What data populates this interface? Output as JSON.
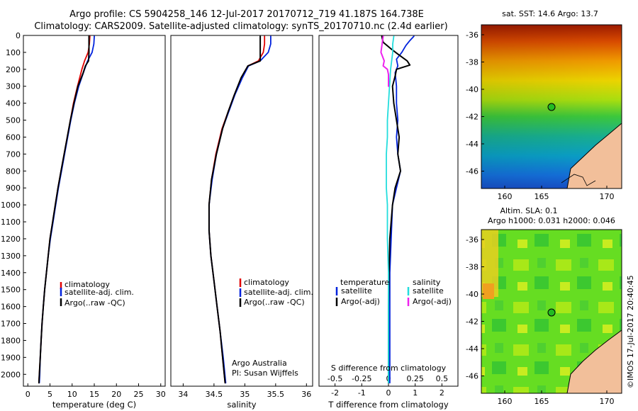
{
  "header": {
    "title_line1": "Argo profile: CS 5904258_146 12-Jul-2017 20170712_719 41.187S 164.738E",
    "title_line2": "Climatology: CARS2009. Satellite-adjusted climatology: synTS_20170710.nc (2.4d earlier)"
  },
  "colors": {
    "climatology": "#e00000",
    "satellite": "#0022dd",
    "argo": "#000000",
    "salinity_sat": "#22dddd",
    "salinity_argo": "#ee22ee",
    "land": "#f2bf9a"
  },
  "chart_data": [
    {
      "id": "temperature",
      "type": "line",
      "xlabel": "temperature (deg C)",
      "ylabel": "",
      "xlim": [
        -1,
        31
      ],
      "ylim": [
        2070,
        0
      ],
      "xticks": [
        0,
        5,
        10,
        15,
        20,
        25,
        30
      ],
      "yticks": [
        0,
        100,
        200,
        300,
        400,
        500,
        600,
        700,
        800,
        900,
        1000,
        1100,
        1200,
        1300,
        1400,
        1500,
        1600,
        1700,
        1800,
        1900,
        2000
      ],
      "legend": [
        "climatology",
        "satellite-adj. clim.",
        "Argo(..raw -QC)"
      ],
      "series": [
        {
          "name": "climatology",
          "depth": [
            5,
            50,
            100,
            150,
            200,
            300,
            400,
            500,
            600,
            700,
            800,
            900,
            1000,
            1100,
            1200,
            1300,
            1400,
            1500,
            1600,
            1700,
            1800,
            1900,
            2000,
            2050
          ],
          "values": [
            14.0,
            13.9,
            13.6,
            12.8,
            12.2,
            11.2,
            10.3,
            9.6,
            8.9,
            8.2,
            7.5,
            6.8,
            6.2,
            5.6,
            5.0,
            4.6,
            4.2,
            3.8,
            3.5,
            3.2,
            3.0,
            2.8,
            2.6,
            2.5
          ]
        },
        {
          "name": "satellite-adj. clim.",
          "depth": [
            5,
            50,
            100,
            150,
            200,
            300,
            400,
            500,
            600,
            700,
            800,
            900,
            1000,
            1100,
            1200,
            1300,
            1400,
            1500,
            1600,
            1700,
            1800,
            1900,
            2000,
            2050
          ],
          "values": [
            15.0,
            14.9,
            14.5,
            13.5,
            12.8,
            11.5,
            10.5,
            9.7,
            9.0,
            8.3,
            7.6,
            6.9,
            6.3,
            5.7,
            5.1,
            4.6,
            4.2,
            3.8,
            3.5,
            3.2,
            3.0,
            2.8,
            2.7,
            2.6
          ]
        },
        {
          "name": "Argo(..raw -QC)",
          "depth": [
            5,
            50,
            100,
            150,
            180,
            220,
            300,
            400,
            500,
            600,
            700,
            800,
            900,
            1000,
            1100,
            1200,
            1300,
            1400,
            1500,
            1600,
            1700,
            1800,
            1900,
            2000,
            2050
          ],
          "values": [
            13.8,
            13.8,
            13.8,
            13.7,
            13.0,
            12.5,
            11.3,
            10.4,
            9.6,
            8.9,
            8.2,
            7.5,
            6.8,
            6.2,
            5.6,
            5.0,
            4.6,
            4.2,
            3.8,
            3.5,
            3.2,
            3.0,
            2.8,
            2.6,
            2.5
          ]
        }
      ]
    },
    {
      "id": "salinity",
      "type": "line",
      "xlabel": "salinity",
      "xlim": [
        33.8,
        36.1
      ],
      "ylim": [
        2070,
        0
      ],
      "xticks": [
        34,
        34.5,
        35,
        35.5,
        36
      ],
      "legend": [
        "climatology",
        "satellite-adj. clim.",
        "Argo(..raw -QC)"
      ],
      "annotation": [
        "Argo Australia",
        "PI: Susan Wijffels"
      ],
      "series": [
        {
          "name": "climatology",
          "depth": [
            5,
            50,
            100,
            150,
            180,
            250,
            350,
            450,
            550,
            700,
            850,
            1000,
            1150,
            1300,
            1450,
            1600,
            1750,
            1900,
            2050
          ],
          "values": [
            35.32,
            35.32,
            35.3,
            35.22,
            35.05,
            34.95,
            34.83,
            34.73,
            34.63,
            34.53,
            34.46,
            34.42,
            34.42,
            34.45,
            34.5,
            34.55,
            34.6,
            34.64,
            34.68
          ]
        },
        {
          "name": "satellite-adj. clim.",
          "depth": [
            5,
            50,
            100,
            150,
            180,
            250,
            350,
            450,
            550,
            700,
            850,
            1000,
            1150,
            1300,
            1450,
            1600,
            1750,
            1900,
            2050
          ],
          "values": [
            35.42,
            35.42,
            35.38,
            35.25,
            35.06,
            34.96,
            34.84,
            34.74,
            34.64,
            34.54,
            34.47,
            34.42,
            34.42,
            34.45,
            34.5,
            34.55,
            34.6,
            34.65,
            34.69
          ]
        },
        {
          "name": "Argo(..raw -QC)",
          "depth": [
            5,
            50,
            100,
            150,
            180,
            250,
            350,
            450,
            550,
            700,
            850,
            1000,
            1150,
            1300,
            1450,
            1600,
            1750,
            1900,
            2050
          ],
          "values": [
            35.25,
            35.25,
            35.25,
            35.25,
            35.05,
            34.94,
            34.83,
            34.73,
            34.64,
            34.54,
            34.46,
            34.42,
            34.42,
            34.45,
            34.5,
            34.55,
            34.6,
            34.64,
            34.68
          ]
        }
      ]
    },
    {
      "id": "difference",
      "type": "line",
      "xlabel": "T difference from climatology",
      "xlabel_top": "S difference from climatology",
      "xlim": [
        -2.6,
        2.6
      ],
      "ylim": [
        2070,
        0
      ],
      "xticks_T": [
        -2,
        -1,
        0,
        1,
        2
      ],
      "xticks_T_labels": [
        "-2",
        "-1",
        "0",
        "1",
        "2"
      ],
      "xticks_S": [
        -0.5,
        -0.25,
        0,
        0.25,
        0.5
      ],
      "xticks_S_labels": [
        "-0.5",
        "-0.25",
        "0",
        "0.25",
        "0.5"
      ],
      "legend_temperature_title": "temperature",
      "legend_salinity_title": "salinity",
      "legend_temperature": [
        "satellite",
        "Argo(-adj)"
      ],
      "legend_salinity": [
        "satellite",
        "Argo(-adj)"
      ],
      "series": [
        {
          "name": "temperature satellite",
          "depth": [
            5,
            30,
            60,
            100,
            140,
            180,
            220,
            300,
            400,
            500,
            600,
            700,
            800,
            900,
            1000,
            1200,
            1400,
            1600,
            1800,
            2000,
            2050
          ],
          "values": [
            0.95,
            0.8,
            0.65,
            0.5,
            0.3,
            0.35,
            0.25,
            0.3,
            0.3,
            0.35,
            0.3,
            0.35,
            0.45,
            0.3,
            0.15,
            0.1,
            0.05,
            0.05,
            0.05,
            0.05,
            0.05
          ]
        },
        {
          "name": "temperature Argo(-adj)",
          "depth": [
            5,
            40,
            80,
            110,
            150,
            175,
            200,
            240,
            300,
            400,
            500,
            600,
            700,
            800,
            900,
            1000,
            1200,
            1400,
            1600,
            1800,
            2000,
            2050
          ],
          "values": [
            -0.25,
            -0.2,
            0.1,
            0.35,
            0.7,
            0.8,
            0.3,
            0.25,
            0.15,
            0.2,
            0.3,
            0.4,
            0.35,
            0.45,
            0.25,
            0.15,
            0.05,
            0.02,
            0.0,
            0.0,
            0.0,
            0.0
          ]
        },
        {
          "name": "salinity satellite",
          "depth": [
            5,
            50,
            100,
            200,
            300,
            400,
            500,
            600,
            700,
            800,
            900,
            1000,
            1200,
            1400,
            1600,
            1800,
            2000,
            2050
          ],
          "values": [
            0.05,
            0.04,
            0.04,
            0.02,
            0.01,
            0.0,
            -0.01,
            -0.01,
            -0.02,
            -0.02,
            -0.02,
            -0.01,
            -0.01,
            0.0,
            0.0,
            0.0,
            0.0,
            0.0
          ]
        },
        {
          "name": "salinity Argo(-adj)",
          "depth": [
            5,
            50,
            100,
            150,
            180,
            200,
            230,
            300
          ],
          "values": [
            -0.05,
            -0.06,
            -0.07,
            -0.04,
            -0.05,
            -0.01,
            0.0,
            0.0
          ]
        }
      ]
    }
  ],
  "maps": {
    "sst": {
      "title": "sat. SST: 14.6 Argo: 13.7",
      "lon_ticks": [
        "160",
        "165",
        "170"
      ],
      "lat_ticks": [
        "-36",
        "-38",
        "-40",
        "-42",
        "-44",
        "-46"
      ]
    },
    "sla": {
      "title_line1": "Altim. SLA: 0.1",
      "title_line2": "Argo h1000: 0.031 h2000: 0.046",
      "lon_ticks": [
        "160",
        "165",
        "170"
      ],
      "lat_ticks": [
        "-36",
        "-38",
        "-40",
        "-42",
        "-44",
        "-46"
      ]
    }
  },
  "footer": {
    "stamp": "©IMOS 17-Jul-2017 20:40:45"
  }
}
